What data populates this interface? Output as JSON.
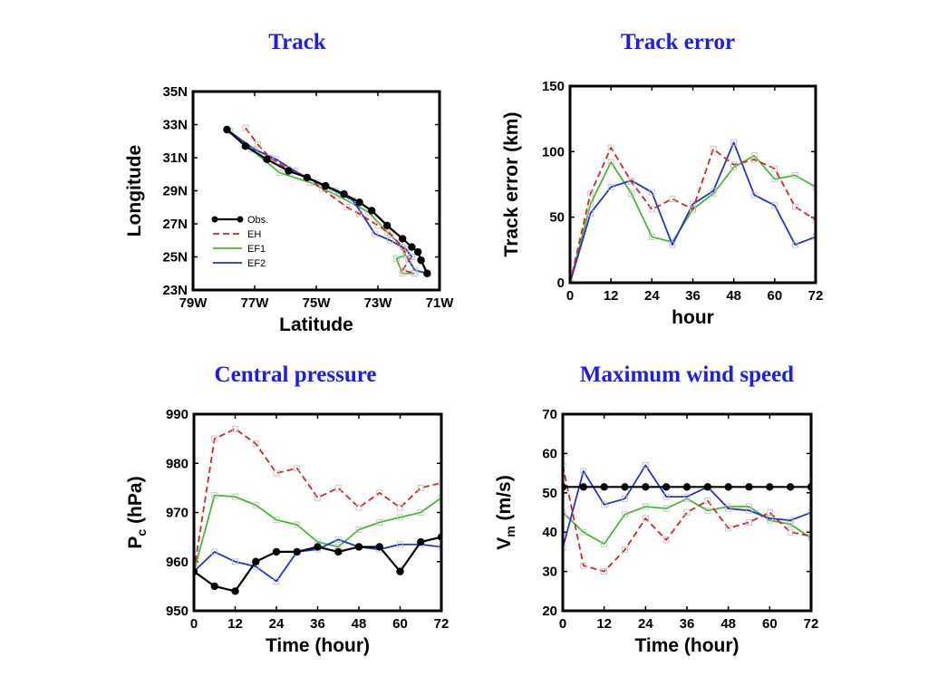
{
  "panel_titles": {
    "track": "Track",
    "track_error": "Track error",
    "central_pressure": "Central pressure",
    "max_wind": "Maximum wind speed"
  },
  "series_colors": {
    "Obs.": "#000000",
    "EH": "#dd2222",
    "EF1": "#44bb33",
    "EF2": "#2233cc"
  },
  "chart_data": [
    {
      "id": "track",
      "type": "line",
      "title": "Track",
      "xlabel": "Latitude",
      "ylabel": "Longitude",
      "xlim": [
        -79,
        -71
      ],
      "ylim": [
        23,
        35
      ],
      "xticks": [
        -79,
        -77,
        -75,
        -73,
        -71
      ],
      "xtick_labels": [
        "79W",
        "77W",
        "75W",
        "73W",
        "71W"
      ],
      "yticks": [
        23,
        25,
        27,
        29,
        31,
        33,
        35
      ],
      "ytick_labels": [
        "23N",
        "25N",
        "27N",
        "29N",
        "31N",
        "33N",
        "35N"
      ],
      "legend_position": "lower-left",
      "series": [
        {
          "name": "Obs.",
          "x": [
            -77.9,
            -77.3,
            -76.6,
            -75.9,
            -75.3,
            -74.7,
            -74.1,
            -73.6,
            -73.2,
            -72.7,
            -72.2,
            -71.9,
            -71.7,
            -71.6,
            -71.4
          ],
          "y": [
            32.7,
            31.7,
            30.9,
            30.2,
            29.8,
            29.3,
            28.8,
            28.3,
            27.8,
            26.9,
            26.1,
            25.6,
            25.3,
            24.8,
            24.0
          ]
        },
        {
          "name": "EH",
          "x": [
            -77.3,
            -76.9,
            -76.5,
            -75.9,
            -75.3,
            -74.8,
            -74.0,
            -73.6,
            -73.0,
            -72.6,
            -72.2,
            -72.0,
            -72.2,
            -71.8
          ],
          "y": [
            32.8,
            31.8,
            31.0,
            30.3,
            29.8,
            29.1,
            28.0,
            27.6,
            26.9,
            26.4,
            25.6,
            24.8,
            24.2,
            24.0
          ]
        },
        {
          "name": "EF1",
          "x": [
            -77.8,
            -77.1,
            -76.2,
            -75.2,
            -74.3,
            -73.3,
            -72.7,
            -72.3,
            -72.1,
            -72.4,
            -72.2,
            -71.8
          ],
          "y": [
            32.6,
            31.5,
            30.1,
            29.5,
            28.7,
            27.7,
            26.5,
            25.8,
            25.1,
            24.9,
            24.0,
            24.0
          ]
        },
        {
          "name": "EF2",
          "x": [
            -77.9,
            -77.0,
            -76.3,
            -75.7,
            -75.0,
            -74.4,
            -73.8,
            -73.1,
            -72.6,
            -72.1,
            -71.9,
            -72.0,
            -71.8,
            -71.4
          ],
          "y": [
            32.7,
            31.5,
            30.9,
            30.2,
            29.5,
            29.0,
            28.4,
            26.4,
            26.0,
            25.5,
            25.0,
            24.8,
            24.2,
            24.0
          ]
        }
      ]
    },
    {
      "id": "track_error",
      "type": "line",
      "title": "Track error",
      "xlabel": "hour",
      "ylabel": "Track error (km)",
      "xlim": [
        0,
        72
      ],
      "ylim": [
        0,
        150
      ],
      "xticks": [
        0,
        12,
        24,
        36,
        48,
        60,
        72
      ],
      "xtick_labels": [
        "0",
        "12",
        "24",
        "36",
        "48",
        "60",
        "72"
      ],
      "yticks": [
        0,
        50,
        100,
        150
      ],
      "ytick_labels": [
        "0",
        "50",
        "100",
        "150"
      ],
      "x": [
        0,
        6,
        12,
        18,
        24,
        30,
        36,
        42,
        48,
        54,
        60,
        66,
        72
      ],
      "series": [
        {
          "name": "EH",
          "values": [
            0,
            68,
            103,
            77,
            56,
            64,
            56,
            102,
            90,
            94,
            87,
            58,
            48
          ]
        },
        {
          "name": "EF1",
          "values": [
            0,
            60,
            92,
            68,
            35,
            31,
            56,
            68,
            88,
            97,
            79,
            82,
            73
          ]
        },
        {
          "name": "EF2",
          "values": [
            0,
            53,
            73,
            78,
            69,
            29,
            60,
            70,
            107,
            67,
            59,
            29,
            35
          ]
        }
      ]
    },
    {
      "id": "central_pressure",
      "type": "line",
      "title": "Central pressure",
      "xlabel": "Time (hour)",
      "ylabel": "P",
      "ylabel_sub": "c",
      "ylabel_suffix": " (hPa)",
      "xlim": [
        0,
        72
      ],
      "ylim": [
        950,
        990
      ],
      "xticks": [
        0,
        12,
        24,
        36,
        48,
        60,
        72
      ],
      "xtick_labels": [
        "0",
        "12",
        "24",
        "36",
        "48",
        "60",
        "72"
      ],
      "yticks": [
        950,
        960,
        970,
        980,
        990
      ],
      "ytick_labels": [
        "950",
        "960",
        "970",
        "980",
        "990"
      ],
      "x": [
        0,
        6,
        12,
        18,
        24,
        30,
        36,
        42,
        48,
        54,
        60,
        66,
        72
      ],
      "series": [
        {
          "name": "Obs.",
          "values": [
            958,
            955,
            954,
            960,
            962,
            962,
            963,
            962,
            963,
            963,
            958,
            964,
            965
          ]
        },
        {
          "name": "EH",
          "values": [
            958,
            985,
            987,
            984,
            978,
            979,
            973,
            975,
            971,
            974,
            971,
            975,
            976
          ]
        },
        {
          "name": "EF1",
          "values": [
            958,
            973.5,
            973.2,
            971.5,
            968.5,
            967.5,
            964,
            963,
            966.5,
            968,
            969,
            970,
            973
          ]
        },
        {
          "name": "EF2",
          "values": [
            958,
            962,
            960,
            959,
            956,
            962,
            962.5,
            964.5,
            963,
            962.5,
            963.5,
            963.5,
            963
          ]
        }
      ]
    },
    {
      "id": "max_wind",
      "type": "line",
      "title": "Maximum wind speed",
      "xlabel": "Time (hour)",
      "ylabel": "V",
      "ylabel_sub": "m",
      "ylabel_suffix": " (m/s)",
      "xlim": [
        0,
        72
      ],
      "ylim": [
        20,
        70
      ],
      "xticks": [
        0,
        12,
        24,
        36,
        48,
        60,
        72
      ],
      "xtick_labels": [
        "0",
        "12",
        "24",
        "36",
        "48",
        "60",
        "72"
      ],
      "yticks": [
        20,
        30,
        40,
        50,
        60,
        70
      ],
      "ytick_labels": [
        "20",
        "30",
        "40",
        "50",
        "60",
        "70"
      ],
      "x": [
        0,
        6,
        12,
        18,
        24,
        30,
        36,
        42,
        48,
        54,
        60,
        66,
        72
      ],
      "series": [
        {
          "name": "Obs.",
          "values": [
            51.5,
            51.5,
            51.5,
            51.5,
            51.5,
            51.5,
            51.5,
            51.5,
            51.5,
            51.5,
            51.5,
            51.5,
            51.5
          ]
        },
        {
          "name": "EH",
          "values": [
            57,
            31.5,
            30,
            35.5,
            43.5,
            38,
            45,
            48,
            41,
            42.5,
            45,
            40,
            39
          ]
        },
        {
          "name": "EF1",
          "values": [
            45,
            40,
            37,
            44.5,
            46.5,
            46,
            48.5,
            45.5,
            46.5,
            46.5,
            43,
            42,
            38.5
          ]
        },
        {
          "name": "EF2",
          "values": [
            36,
            55.5,
            47,
            48.5,
            57,
            49,
            49,
            51.5,
            46,
            45.5,
            43.5,
            43,
            45
          ]
        }
      ]
    }
  ]
}
